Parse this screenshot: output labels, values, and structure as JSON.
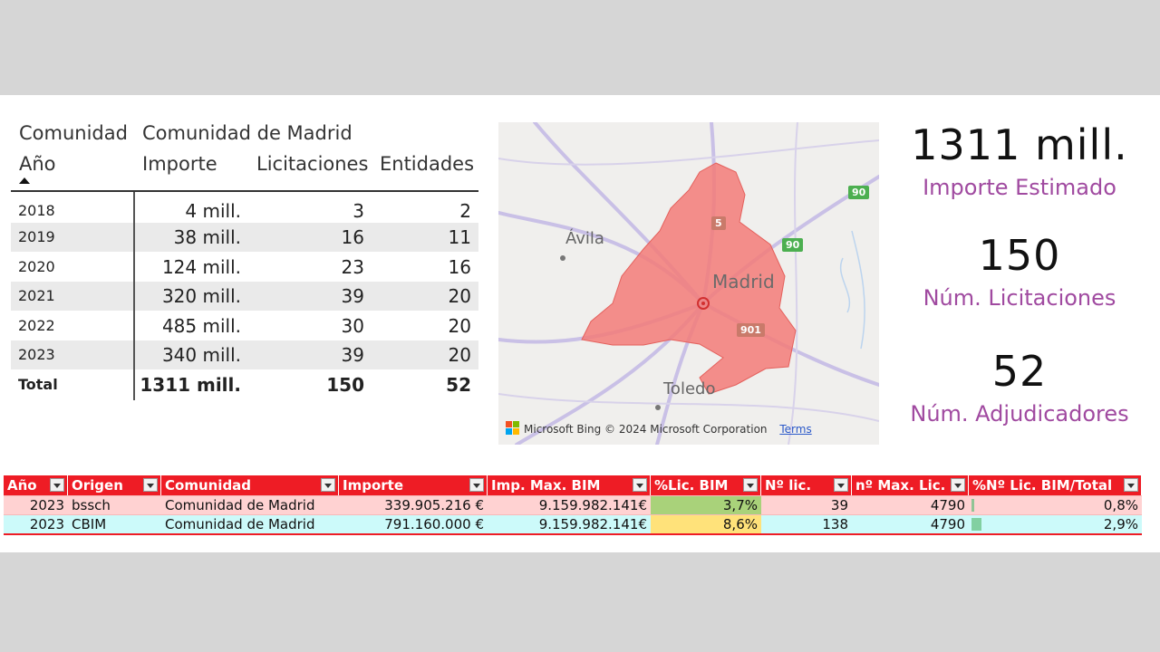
{
  "matrix": {
    "row_header": "Comunidad",
    "column_group": "Comunidad de Madrid",
    "year_header": "Año",
    "columns": [
      "Importe",
      "Licitaciones",
      "Entidades"
    ],
    "rows": [
      {
        "year": "2018",
        "importe": "4 mill.",
        "licitaciones": "3",
        "entidades": "2"
      },
      {
        "year": "2019",
        "importe": "38 mill.",
        "licitaciones": "16",
        "entidades": "11"
      },
      {
        "year": "2020",
        "importe": "124 mill.",
        "licitaciones": "23",
        "entidades": "16"
      },
      {
        "year": "2021",
        "importe": "320 mill.",
        "licitaciones": "39",
        "entidades": "20"
      },
      {
        "year": "2022",
        "importe": "485 mill.",
        "licitaciones": "30",
        "entidades": "20"
      },
      {
        "year": "2023",
        "importe": "340 mill.",
        "licitaciones": "39",
        "entidades": "20"
      }
    ],
    "total": {
      "label": "Total",
      "importe": "1311 mill.",
      "licitaciones": "150",
      "entidades": "52"
    }
  },
  "map": {
    "labels": {
      "avila": "Ávila",
      "madrid": "Madrid",
      "toledo": "Toledo"
    },
    "shields": {
      "s5": "5",
      "s90a": "90",
      "s90b": "90",
      "s901": "901"
    },
    "attribution": {
      "brand": "Microsoft Bing",
      "copyright": "© 2024 Microsoft Corporation",
      "terms": "Terms"
    },
    "colors": {
      "region": "#f37b78",
      "road": "#c9c0e6",
      "shield": "#4caf50"
    }
  },
  "kpis": [
    {
      "value": "1311 mill.",
      "label": "Importe Estimado"
    },
    {
      "value": "150",
      "label": "Núm. Licitaciones"
    },
    {
      "value": "52",
      "label": "Núm. Adjudicadores"
    }
  ],
  "excel": {
    "headers": [
      "Año",
      "Origen",
      "Comunidad",
      "Importe",
      "Imp. Max. BIM",
      "%Lic. BIM",
      "Nº lic.",
      "nº Max. Lic.",
      "%Nº Lic. BIM/Total"
    ],
    "rows": [
      {
        "anio": "2023",
        "origen": "bssch",
        "comunidad": "Comunidad de Madrid",
        "importe": "339.905.216 €",
        "imp_max": "9.159.982.141€",
        "pct_lic": "3,7%",
        "n_lic": "39",
        "n_max": "4790",
        "pct_total": "0,8%",
        "pct_total_value": 0.8
      },
      {
        "anio": "2023",
        "origen": "CBIM",
        "comunidad": "Comunidad de Madrid",
        "importe": "791.160.000 €",
        "imp_max": "9.159.982.141€",
        "pct_lic": "8,6%",
        "n_lic": "138",
        "n_max": "4790",
        "pct_total": "2,9%",
        "pct_total_value": 2.9
      }
    ],
    "colors": {
      "header": "#ee1c25",
      "row1": "#ffd2d2",
      "row2": "#ccfafa",
      "pct_low": "#a9d27a",
      "pct_high": "#ffe27a"
    }
  }
}
